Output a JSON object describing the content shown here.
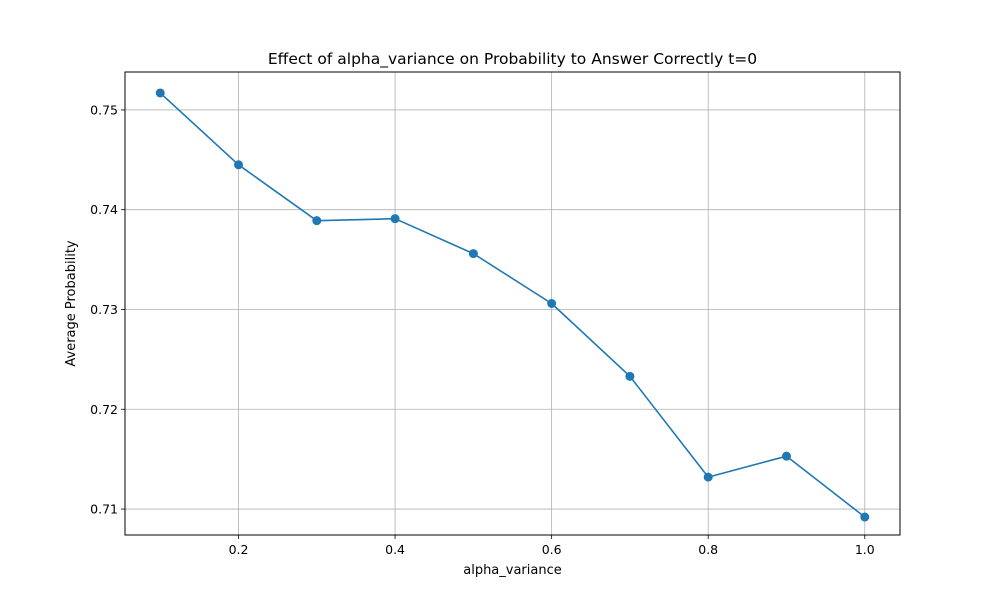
{
  "chart_data": {
    "type": "line",
    "title": "Effect of alpha_variance on Probability to Answer Correctly t=0",
    "xlabel": "alpha_variance",
    "ylabel": "Average Probability",
    "xlim": [
      0.055,
      1.045
    ],
    "ylim": [
      0.7074,
      0.7538
    ],
    "xticks": [
      0.2,
      0.4,
      0.6,
      0.8,
      1.0
    ],
    "xtick_labels": [
      "0.2",
      "0.4",
      "0.6",
      "0.8",
      "1.0"
    ],
    "yticks": [
      0.71,
      0.72,
      0.73,
      0.74,
      0.75
    ],
    "ytick_labels": [
      "0.71",
      "0.72",
      "0.73",
      "0.74",
      "0.75"
    ],
    "grid": true,
    "color": "#1f77b4",
    "x": [
      0.1,
      0.2,
      0.3,
      0.4,
      0.5,
      0.6,
      0.7,
      0.8,
      0.9,
      1.0
    ],
    "y": [
      0.7517,
      0.7445,
      0.7389,
      0.7391,
      0.7356,
      0.7306,
      0.7233,
      0.7132,
      0.7153,
      0.7092
    ]
  }
}
